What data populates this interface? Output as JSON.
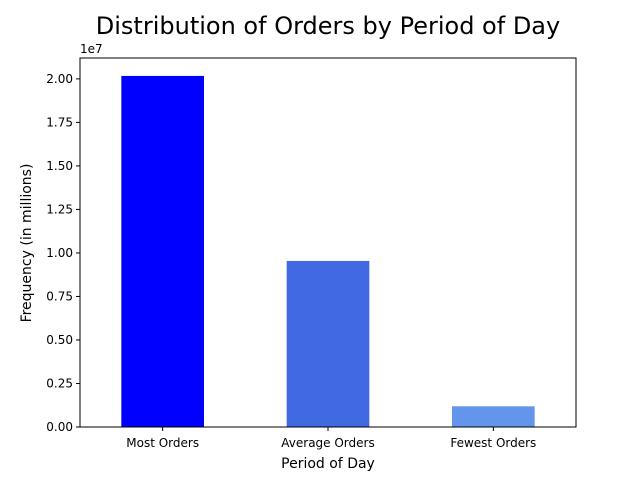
{
  "chart_data": {
    "type": "bar",
    "title": "Distribution of Orders by Period of Day",
    "xlabel": "Period of Day",
    "ylabel": "Frequency (in millions)",
    "y_offset_label": "1e7",
    "categories": [
      "Most Orders",
      "Average Orders",
      "Fewest Orders"
    ],
    "values": [
      20170000,
      9540000,
      1190000
    ],
    "colors": [
      "#0000ff",
      "#4169e1",
      "#6495ed"
    ],
    "ylim": [
      0,
      21200000
    ],
    "y_ticks": [
      0,
      2500000,
      5000000,
      7500000,
      10000000,
      12500000,
      15000000,
      17500000,
      20000000
    ],
    "y_tick_labels": [
      "0.00",
      "0.25",
      "0.50",
      "0.75",
      "1.00",
      "1.25",
      "1.50",
      "1.75",
      "2.00"
    ],
    "grid": false,
    "legend": "none"
  }
}
